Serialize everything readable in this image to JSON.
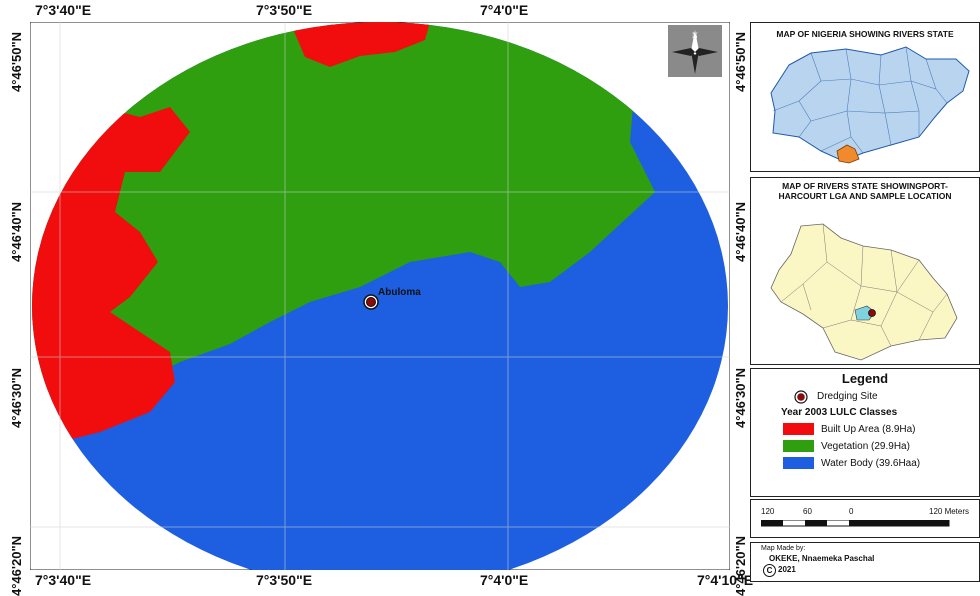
{
  "coords": {
    "top": [
      "7°3'40\"E",
      "7°3'50\"E",
      "7°4'0\"E"
    ],
    "bottom": [
      "7°3'40\"E",
      "7°3'50\"E",
      "7°4'0\"E",
      "7°4'10\"E"
    ],
    "left": [
      "4°46'50\"N",
      "4°46'40\"N",
      "4°46'30\"N",
      "4°46'20\"N"
    ],
    "right": [
      "4°46'50\"N",
      "4°46'40\"N",
      "4°46'30\"N",
      "4°46'20\"N"
    ]
  },
  "main_map": {
    "site_label": "Abuloma",
    "north_label": "N"
  },
  "colors": {
    "built_up": "#f10d0d",
    "vegetation": "#2f9e0f",
    "water": "#1d5fe0",
    "inset_fill": "#b9d4ef",
    "rivers_fill": "#fbf7c4",
    "highlight": "#f08a2c"
  },
  "inset_nigeria": {
    "title": "MAP OF NIGERIA SHOWING RIVERS STATE"
  },
  "inset_rivers": {
    "title_line1": "MAP OF RIVERS STATE SHOWINGPORT-",
    "title_line2": "HARCOURT LGA AND SAMPLE LOCATION"
  },
  "legend": {
    "title": "Legend",
    "site": "Dredging Site",
    "subtitle": "Year 2003 LULC Classes",
    "classes": [
      {
        "label": "Built Up Area (8.9Ha)"
      },
      {
        "label": "Vegetation (29.9Ha)"
      },
      {
        "label": "Water Body (39.6Haa)"
      }
    ]
  },
  "scale": {
    "labels": [
      "120",
      "60",
      "0",
      "120 Meters"
    ]
  },
  "credits": {
    "line1": "Map Made by:",
    "line2": "OKEKE, Nnaemeka Paschal",
    "line3": "2021",
    "copyright_symbol": "C"
  }
}
